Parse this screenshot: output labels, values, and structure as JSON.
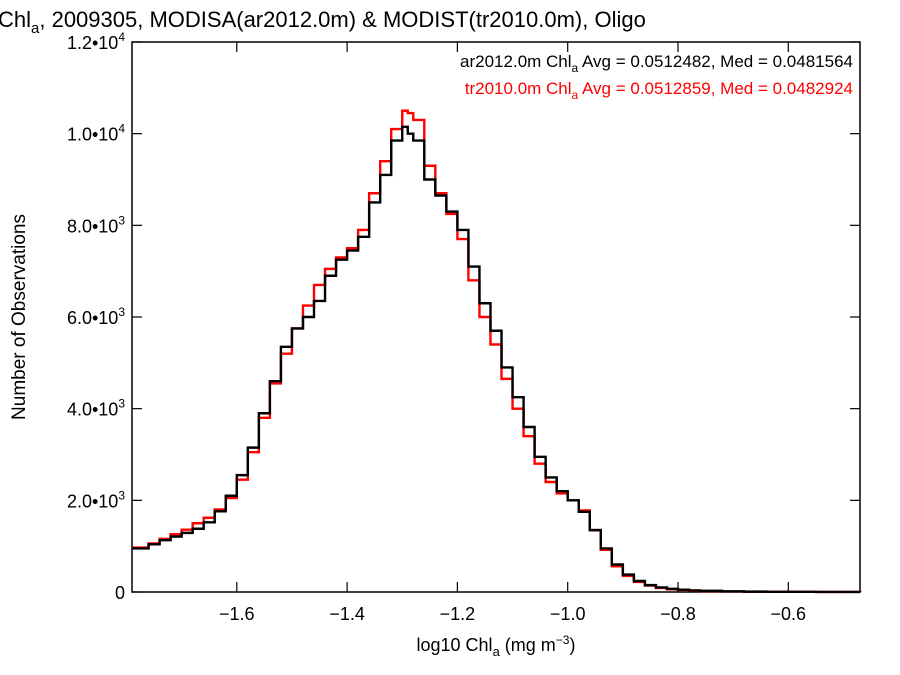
{
  "chart_data": {
    "type": "line",
    "title": "Chl$a$, 2009305, MODISA(ar2012.0m) & MODIST(tr2010.0m), Oligo",
    "title_parts": {
      "lead": "Chl",
      "lead_sub": "a",
      "rest": ", 2009305, MODISA(ar2012.0m) & MODIST(tr2010.0m), Oligo"
    },
    "xlabel": "log10 Chl$a$ (mg m$^{-3}$)",
    "xlabel_parts": {
      "lead": "log10 Chl",
      "lead_sub": "a",
      "mid": " (mg m",
      "sup": "−3",
      "tail": ")"
    },
    "ylabel": "Number of Observations",
    "xlim": [
      -1.79,
      -0.47
    ],
    "ylim": [
      0,
      12000
    ],
    "x_ticks": [
      {
        "value": -1.6,
        "label": "−1.6"
      },
      {
        "value": -1.4,
        "label": "−1.4"
      },
      {
        "value": -1.2,
        "label": "−1.2"
      },
      {
        "value": -1.0,
        "label": "−1.0"
      },
      {
        "value": -0.8,
        "label": "−0.8"
      },
      {
        "value": -0.6,
        "label": "−0.6"
      }
    ],
    "y_ticks": [
      {
        "value": 0,
        "mant": "0",
        "exp": ""
      },
      {
        "value": 2000,
        "mant": "2.0•10",
        "exp": "3"
      },
      {
        "value": 4000,
        "mant": "4.0•10",
        "exp": "3"
      },
      {
        "value": 6000,
        "mant": "6.0•10",
        "exp": "3"
      },
      {
        "value": 8000,
        "mant": "8.0•10",
        "exp": "3"
      },
      {
        "value": 10000,
        "mant": "1.0•10",
        "exp": "4"
      },
      {
        "value": 12000,
        "mant": "1.2•10",
        "exp": "4"
      }
    ],
    "grid": false,
    "legend_position": "top-right",
    "series": [
      {
        "name": "ar2012.0m",
        "color": "#000000",
        "legend": {
          "lead": "ar2012.0m Chl",
          "sub": "a",
          "rest": " Avg = 0.0512482, Med = 0.0481564"
        },
        "points": [
          [
            -1.79,
            950
          ],
          [
            -1.76,
            1040
          ],
          [
            -1.74,
            1130
          ],
          [
            -1.72,
            1210
          ],
          [
            -1.7,
            1290
          ],
          [
            -1.68,
            1380
          ],
          [
            -1.66,
            1520
          ],
          [
            -1.64,
            1760
          ],
          [
            -1.62,
            2100
          ],
          [
            -1.6,
            2550
          ],
          [
            -1.58,
            3150
          ],
          [
            -1.56,
            3900
          ],
          [
            -1.54,
            4600
          ],
          [
            -1.52,
            5350
          ],
          [
            -1.5,
            5750
          ],
          [
            -1.48,
            6000
          ],
          [
            -1.46,
            6350
          ],
          [
            -1.44,
            6900
          ],
          [
            -1.42,
            7250
          ],
          [
            -1.4,
            7450
          ],
          [
            -1.38,
            7750
          ],
          [
            -1.36,
            8500
          ],
          [
            -1.34,
            9100
          ],
          [
            -1.32,
            9850
          ],
          [
            -1.3,
            10150
          ],
          [
            -1.29,
            10000
          ],
          [
            -1.28,
            9850
          ],
          [
            -1.26,
            9000
          ],
          [
            -1.24,
            8650
          ],
          [
            -1.22,
            8300
          ],
          [
            -1.2,
            7900
          ],
          [
            -1.18,
            7100
          ],
          [
            -1.16,
            6300
          ],
          [
            -1.14,
            5700
          ],
          [
            -1.12,
            4900
          ],
          [
            -1.1,
            4250
          ],
          [
            -1.08,
            3600
          ],
          [
            -1.06,
            2950
          ],
          [
            -1.04,
            2500
          ],
          [
            -1.02,
            2200
          ],
          [
            -1.0,
            2000
          ],
          [
            -0.98,
            1750
          ],
          [
            -0.96,
            1350
          ],
          [
            -0.94,
            950
          ],
          [
            -0.92,
            600
          ],
          [
            -0.9,
            380
          ],
          [
            -0.88,
            240
          ],
          [
            -0.86,
            150
          ],
          [
            -0.84,
            100
          ],
          [
            -0.82,
            70
          ],
          [
            -0.8,
            50
          ],
          [
            -0.78,
            35
          ],
          [
            -0.76,
            25
          ],
          [
            -0.72,
            15
          ],
          [
            -0.68,
            8
          ],
          [
            -0.64,
            5
          ],
          [
            -0.6,
            3
          ],
          [
            -0.55,
            2
          ],
          [
            -0.47,
            1
          ]
        ]
      },
      {
        "name": "tr2010.0m",
        "color": "#ff0000",
        "legend": {
          "lead": "tr2010.0m Chl",
          "sub": "a",
          "rest": " Avg = 0.0512859, Med = 0.0482924"
        },
        "points": [
          [
            -1.79,
            970
          ],
          [
            -1.76,
            1060
          ],
          [
            -1.74,
            1160
          ],
          [
            -1.72,
            1260
          ],
          [
            -1.7,
            1360
          ],
          [
            -1.68,
            1500
          ],
          [
            -1.66,
            1620
          ],
          [
            -1.64,
            1800
          ],
          [
            -1.62,
            2050
          ],
          [
            -1.6,
            2450
          ],
          [
            -1.58,
            3050
          ],
          [
            -1.56,
            3800
          ],
          [
            -1.54,
            4550
          ],
          [
            -1.52,
            5200
          ],
          [
            -1.5,
            5750
          ],
          [
            -1.48,
            6250
          ],
          [
            -1.46,
            6700
          ],
          [
            -1.44,
            7050
          ],
          [
            -1.42,
            7300
          ],
          [
            -1.4,
            7500
          ],
          [
            -1.38,
            7900
          ],
          [
            -1.36,
            8700
          ],
          [
            -1.34,
            9400
          ],
          [
            -1.32,
            10100
          ],
          [
            -1.3,
            10500
          ],
          [
            -1.29,
            10450
          ],
          [
            -1.28,
            10300
          ],
          [
            -1.26,
            9300
          ],
          [
            -1.24,
            8700
          ],
          [
            -1.22,
            8250
          ],
          [
            -1.2,
            7700
          ],
          [
            -1.18,
            6800
          ],
          [
            -1.16,
            6000
          ],
          [
            -1.14,
            5400
          ],
          [
            -1.12,
            4650
          ],
          [
            -1.1,
            4000
          ],
          [
            -1.08,
            3400
          ],
          [
            -1.06,
            2800
          ],
          [
            -1.04,
            2400
          ],
          [
            -1.02,
            2150
          ],
          [
            -1.0,
            2000
          ],
          [
            -0.98,
            1780
          ],
          [
            -0.96,
            1350
          ],
          [
            -0.94,
            920
          ],
          [
            -0.92,
            560
          ],
          [
            -0.9,
            350
          ],
          [
            -0.88,
            220
          ],
          [
            -0.86,
            140
          ],
          [
            -0.84,
            90
          ],
          [
            -0.82,
            60
          ],
          [
            -0.8,
            45
          ],
          [
            -0.78,
            30
          ],
          [
            -0.76,
            22
          ],
          [
            -0.72,
            12
          ],
          [
            -0.68,
            7
          ],
          [
            -0.64,
            4
          ],
          [
            -0.6,
            3
          ],
          [
            -0.55,
            2
          ],
          [
            -0.47,
            1
          ]
        ]
      }
    ]
  }
}
